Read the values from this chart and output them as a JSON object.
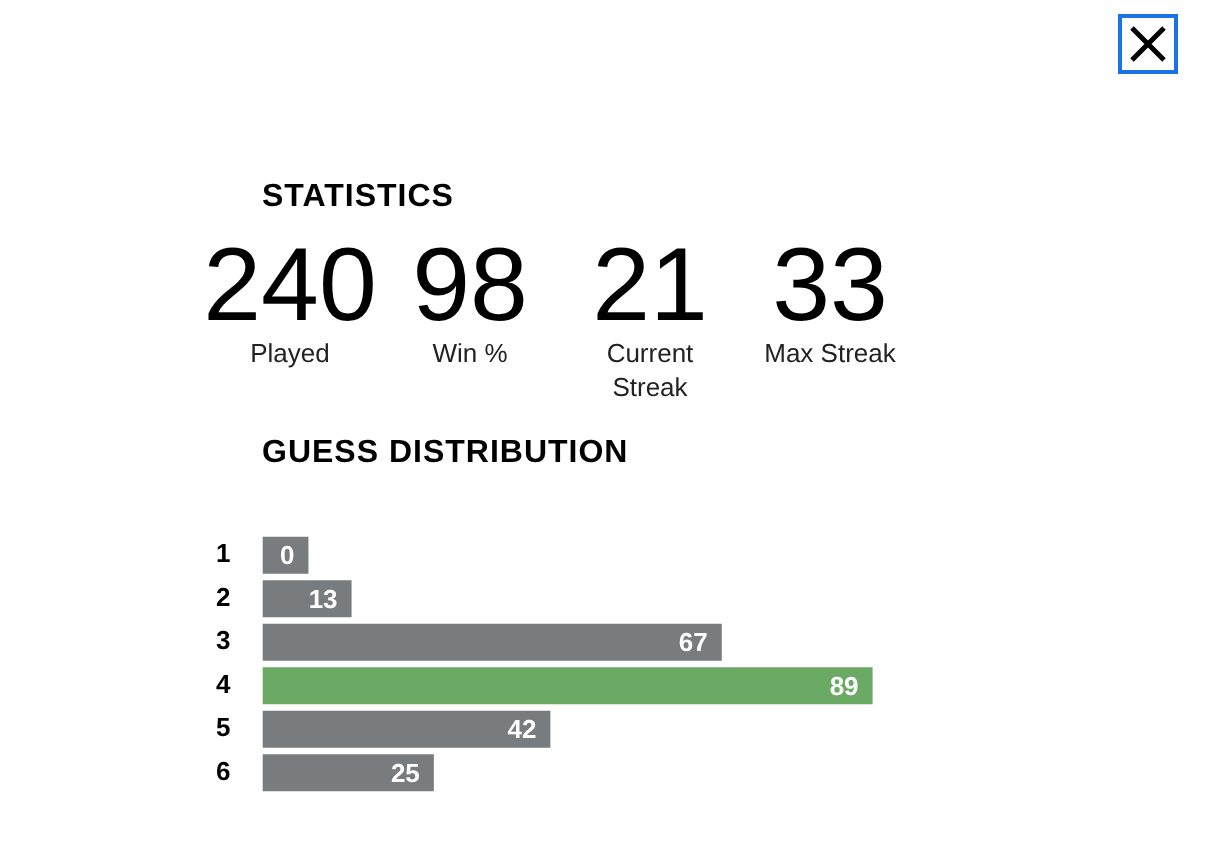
{
  "chart_data": [
    {
      "type": "other",
      "title": "STATISTICS",
      "categories": [
        "Played",
        "Win %",
        "Current Streak",
        "Max Streak"
      ],
      "values": [
        240,
        98,
        21,
        33
      ],
      "data_labels": true
    },
    {
      "type": "bar",
      "title": "GUESS DISTRIBUTION",
      "orientation": "horizontal",
      "categories": [
        "1",
        "2",
        "3",
        "4",
        "5",
        "6"
      ],
      "values": [
        0,
        13,
        67,
        89,
        42,
        25
      ],
      "colors": [
        "#787c7e",
        "#787c7e",
        "#787c7e",
        "#6aaa64",
        "#787c7e",
        "#787c7e"
      ],
      "data_labels": true,
      "tick_labels": "y"
    }
  ]
}
